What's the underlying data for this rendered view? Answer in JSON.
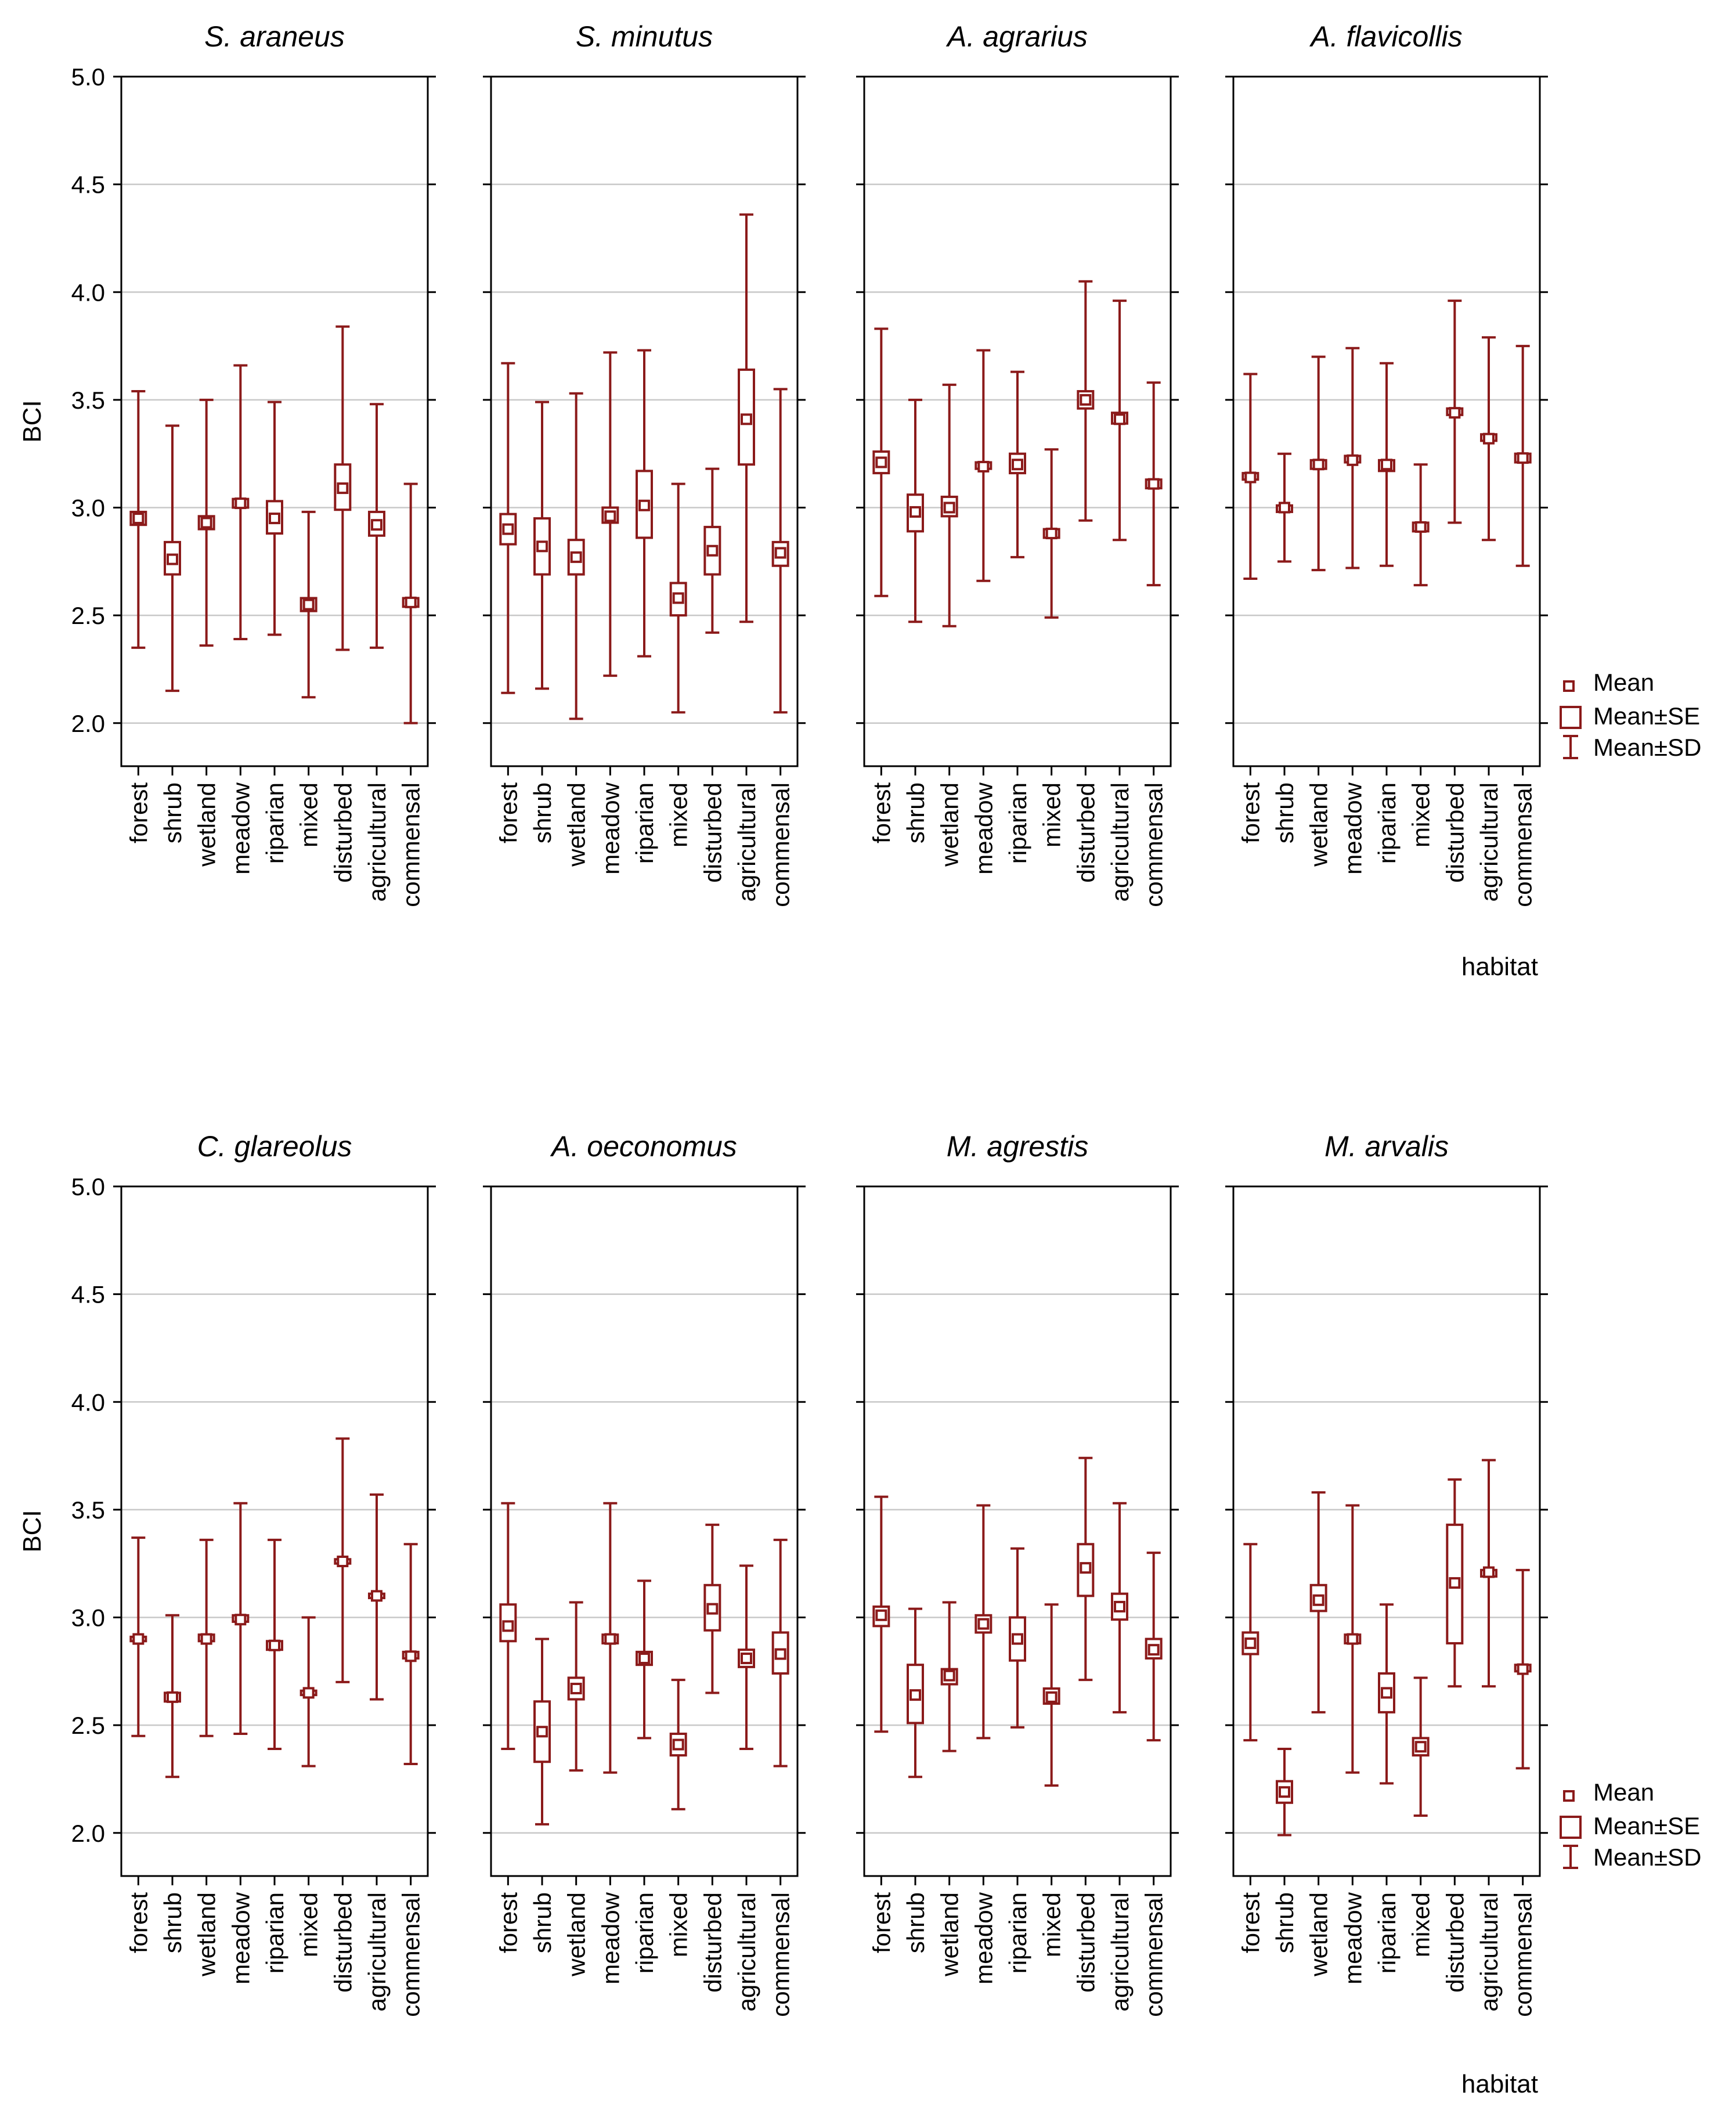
{
  "chart_data": {
    "type": "box",
    "description_note": "Mean (square), Mean±SE (box), Mean±SD (whiskers) of BCI by habitat for eight species",
    "ylabel": "BCI",
    "xlabel": "habitat",
    "yticks": [
      "5.0",
      "4.5",
      "4.0",
      "3.5",
      "3.0",
      "2.5",
      "2.0"
    ],
    "ylim": [
      1.8,
      5.0
    ],
    "grid": true,
    "legend": {
      "position": "right",
      "mean": "Mean",
      "se": "Mean±SE",
      "sd": "Mean±SD"
    },
    "categories": [
      "forest",
      "shrub",
      "wetland",
      "meadow",
      "riparian",
      "mixed",
      "disturbed",
      "agricultural",
      "commensal"
    ],
    "panels": [
      {
        "title": "S. araneus",
        "mean": [
          2.95,
          2.76,
          2.93,
          3.02,
          2.95,
          2.55,
          3.09,
          2.92,
          2.56
        ],
        "se_lo": [
          2.92,
          2.69,
          2.9,
          3.0,
          2.88,
          2.52,
          2.99,
          2.87,
          2.54
        ],
        "se_hi": [
          2.98,
          2.84,
          2.96,
          3.04,
          3.03,
          2.58,
          3.2,
          2.98,
          2.58
        ],
        "sd_lo": [
          2.35,
          2.15,
          2.36,
          2.39,
          2.41,
          2.12,
          2.34,
          2.35,
          2.0
        ],
        "sd_hi": [
          3.54,
          3.38,
          3.5,
          3.66,
          3.49,
          2.98,
          3.84,
          3.48,
          3.11
        ]
      },
      {
        "title": "S. minutus",
        "mean": [
          2.9,
          2.82,
          2.77,
          2.96,
          3.01,
          2.58,
          2.8,
          3.41,
          2.79
        ],
        "se_lo": [
          2.83,
          2.69,
          2.69,
          2.93,
          2.86,
          2.5,
          2.69,
          3.2,
          2.73
        ],
        "se_hi": [
          2.97,
          2.95,
          2.85,
          3.0,
          3.17,
          2.65,
          2.91,
          3.64,
          2.84
        ],
        "sd_lo": [
          2.14,
          2.16,
          2.02,
          2.22,
          2.31,
          2.05,
          2.42,
          2.47,
          2.05
        ],
        "sd_hi": [
          3.67,
          3.49,
          3.53,
          3.72,
          3.73,
          3.11,
          3.18,
          4.36,
          3.55
        ]
      },
      {
        "title": "A. agrarius",
        "mean": [
          3.21,
          2.98,
          3.0,
          3.19,
          3.2,
          2.88,
          3.5,
          3.41,
          3.11
        ],
        "se_lo": [
          3.16,
          2.89,
          2.96,
          3.18,
          3.16,
          2.86,
          3.46,
          3.39,
          3.09
        ],
        "se_hi": [
          3.26,
          3.06,
          3.05,
          3.21,
          3.25,
          2.9,
          3.54,
          3.44,
          3.13
        ],
        "sd_lo": [
          2.59,
          2.47,
          2.45,
          2.66,
          2.77,
          2.49,
          2.94,
          2.85,
          2.64
        ],
        "sd_hi": [
          3.83,
          3.5,
          3.57,
          3.73,
          3.63,
          3.27,
          4.05,
          3.96,
          3.58
        ]
      },
      {
        "title": "A. flavicollis",
        "mean": [
          3.14,
          3.0,
          3.2,
          3.22,
          3.2,
          2.91,
          3.44,
          3.32,
          3.23
        ],
        "se_lo": [
          3.13,
          2.98,
          3.18,
          3.21,
          3.17,
          2.89,
          3.43,
          3.31,
          3.21
        ],
        "se_hi": [
          3.16,
          3.01,
          3.22,
          3.24,
          3.22,
          2.93,
          3.46,
          3.34,
          3.25
        ],
        "sd_lo": [
          2.67,
          2.75,
          2.71,
          2.72,
          2.73,
          2.64,
          2.93,
          2.85,
          2.73
        ],
        "sd_hi": [
          3.62,
          3.25,
          3.7,
          3.74,
          3.67,
          3.2,
          3.96,
          3.79,
          3.75
        ]
      },
      {
        "title": "C. glareolus",
        "mean": [
          2.9,
          2.63,
          2.9,
          2.99,
          2.87,
          2.65,
          3.26,
          3.1,
          2.82
        ],
        "se_lo": [
          2.89,
          2.61,
          2.89,
          2.98,
          2.85,
          2.64,
          3.25,
          3.09,
          2.81
        ],
        "se_hi": [
          2.91,
          2.65,
          2.92,
          3.01,
          2.89,
          2.66,
          3.27,
          3.11,
          2.84
        ],
        "sd_lo": [
          2.45,
          2.26,
          2.45,
          2.46,
          2.39,
          2.31,
          2.7,
          2.62,
          2.32
        ],
        "sd_hi": [
          3.37,
          3.01,
          3.36,
          3.53,
          3.36,
          3.0,
          3.83,
          3.57,
          3.34
        ]
      },
      {
        "title": "A. oeconomus",
        "mean": [
          2.96,
          2.47,
          2.67,
          2.9,
          2.81,
          2.41,
          3.04,
          2.81,
          2.83
        ],
        "se_lo": [
          2.89,
          2.33,
          2.62,
          2.88,
          2.78,
          2.36,
          2.94,
          2.77,
          2.74
        ],
        "se_hi": [
          3.06,
          2.61,
          2.72,
          2.92,
          2.84,
          2.46,
          3.15,
          2.85,
          2.93
        ],
        "sd_lo": [
          2.39,
          2.04,
          2.29,
          2.28,
          2.44,
          2.11,
          2.65,
          2.39,
          2.31
        ],
        "sd_hi": [
          3.53,
          2.9,
          3.07,
          3.53,
          3.17,
          2.71,
          3.43,
          3.24,
          3.36
        ]
      },
      {
        "title": "M. agrestis",
        "mean": [
          3.01,
          2.64,
          2.73,
          2.97,
          2.9,
          2.63,
          3.23,
          3.05,
          2.85
        ],
        "se_lo": [
          2.96,
          2.51,
          2.69,
          2.93,
          2.8,
          2.6,
          3.1,
          2.99,
          2.81
        ],
        "se_hi": [
          3.05,
          2.78,
          2.76,
          3.01,
          3.0,
          2.67,
          3.34,
          3.11,
          2.9
        ],
        "sd_lo": [
          2.47,
          2.26,
          2.38,
          2.44,
          2.49,
          2.22,
          2.71,
          2.56,
          2.43
        ],
        "sd_hi": [
          3.56,
          3.04,
          3.07,
          3.52,
          3.32,
          3.06,
          3.74,
          3.53,
          3.3
        ]
      },
      {
        "title": "M. arvalis",
        "mean": [
          2.88,
          2.19,
          3.08,
          2.9,
          2.65,
          2.4,
          3.16,
          3.21,
          2.76
        ],
        "se_lo": [
          2.83,
          2.14,
          3.03,
          2.88,
          2.56,
          2.36,
          2.88,
          3.19,
          2.75
        ],
        "se_hi": [
          2.93,
          2.24,
          3.15,
          2.92,
          2.74,
          2.44,
          3.43,
          3.22,
          2.78
        ],
        "sd_lo": [
          2.43,
          1.99,
          2.56,
          2.28,
          2.23,
          2.08,
          2.68,
          2.68,
          2.3
        ],
        "sd_hi": [
          3.34,
          2.39,
          3.58,
          3.52,
          3.06,
          2.72,
          3.64,
          3.73,
          3.22
        ]
      }
    ]
  }
}
